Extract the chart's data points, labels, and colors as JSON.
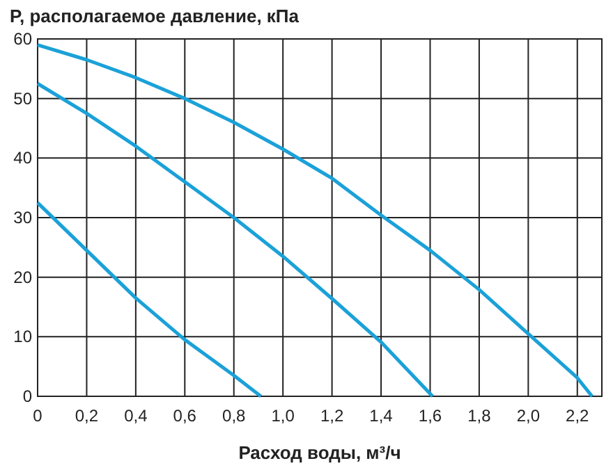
{
  "chart_data": {
    "type": "line",
    "ylabel": "P, располагаемое давление, кПа",
    "xlabel": "Расход воды, м³/ч",
    "xlim": [
      0,
      2.3
    ],
    "ylim": [
      0,
      60
    ],
    "xticks": [
      0,
      {
        "value": 0.2,
        "label": "0,2"
      },
      {
        "value": 0.4,
        "label": "0,4"
      },
      {
        "value": 0.6,
        "label": "0,6"
      },
      {
        "value": 0.8,
        "label": "0,8"
      },
      {
        "value": 1,
        "label": "1,0"
      },
      {
        "value": 1.2,
        "label": "1,2"
      },
      {
        "value": 1.4,
        "label": "1,4"
      },
      {
        "value": 1.6,
        "label": "1,6"
      },
      {
        "value": 1.8,
        "label": "1,8"
      },
      {
        "value": 2,
        "label": "2,0"
      },
      {
        "value": 2.2,
        "label": "2,2"
      }
    ],
    "yticks": [
      0,
      10,
      20,
      30,
      40,
      50,
      60
    ],
    "grid": true,
    "marker": "none",
    "line_style": "solid",
    "series": [
      {
        "color": "#1ba1d8",
        "x": [
          0,
          0.2,
          0.4,
          0.6,
          0.8,
          1.0,
          1.2,
          1.4,
          1.6,
          1.8,
          2.0,
          2.2,
          2.26
        ],
        "values": [
          59,
          56.5,
          53.5,
          50,
          46,
          41.5,
          36.6,
          30.4,
          24.5,
          17.9,
          10.5,
          3.1,
          0
        ]
      },
      {
        "color": "#1ba1d8",
        "x": [
          0,
          0.2,
          0.4,
          0.6,
          0.8,
          1.0,
          1.2,
          1.4,
          1.61
        ],
        "values": [
          52.5,
          47.5,
          42,
          36,
          30,
          23.5,
          16.4,
          9.1,
          0
        ]
      },
      {
        "color": "#1ba1d8",
        "x": [
          0,
          0.2,
          0.4,
          0.6,
          0.8,
          0.91
        ],
        "values": [
          32.5,
          24.5,
          16.5,
          9.5,
          3.5,
          0
        ]
      }
    ]
  }
}
